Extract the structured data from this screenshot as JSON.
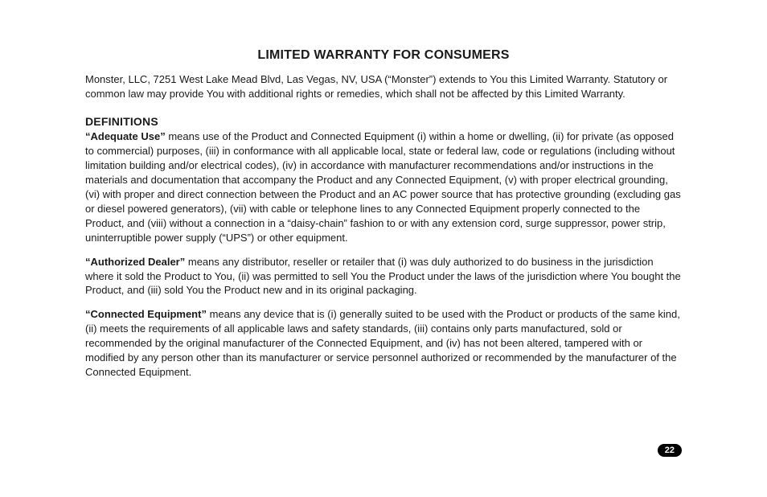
{
  "page": {
    "title": "LIMITED WARRANTY FOR CONSUMERS",
    "intro": "Monster, LLC, 7251 West Lake Mead Blvd, Las Vegas, NV, USA (“Monster”) extends to You this Limited Warranty. Statutory or common law may provide You with additional rights or remedies, which shall not be affected by this Limited Warranty.",
    "definitions_heading": "DEFINITIONS",
    "definitions": [
      {
        "term": "“Adequate Use”",
        "text": " means use of the Product and Connected Equipment (i) within a home or dwelling, (ii) for private (as opposed to commercial) purposes, (iii) in conformance with all applicable local, state or federal law, code or regulations (including without limitation building and/or electrical codes), (iv) in accordance with manufacturer recommendations and/or instructions in the materials and documentation that accompany the Product and any Connected Equipment, (v) with proper electrical grounding, (vi) with proper and direct connection between the Product and an AC power source that has protective grounding (excluding gas or diesel powered generators), (vii) with cable or telephone lines to any Connected Equipment properly connected to the Product, and (viii) without a connection in a “daisy-chain” fashion to or with any extension cord, surge suppressor, power strip, uninterruptible power supply (“UPS”) or other equipment."
      },
      {
        "term": "“Authorized Dealer”",
        "text": " means any distributor, reseller or retailer that (i) was duly authorized to do business in the jurisdiction where it sold the Product to You, (ii) was permitted to sell You the Product under the laws of the jurisdiction where You bought the Product, and (iii) sold You the Product new and in its original packaging."
      },
      {
        "term": "“Connected Equipment”",
        "text": " means any device that is (i) generally suited to be used with the Product or products of the same kind, (ii) meets the requirements of all applicable laws and safety standards, (iii) contains only parts manufactured, sold or recommended by the original manufacturer of the Connected Equipment, and (iv) has not been altered, tampered with or modified by any person other than its manufacturer or service personnel authorized or recommended by the manufacturer of the Connected Equipment."
      }
    ],
    "page_number": "22",
    "colors": {
      "text": "#1a1a1a",
      "background": "#ffffff",
      "badge_bg": "#000000",
      "badge_text": "#ffffff"
    },
    "typography": {
      "title_fontsize_pt": 12,
      "heading_fontsize_pt": 10.5,
      "body_fontsize_pt": 10,
      "title_weight": 700,
      "body_weight": 400,
      "line_height": 1.38
    }
  }
}
